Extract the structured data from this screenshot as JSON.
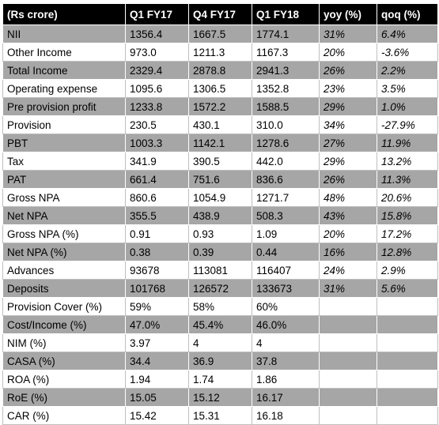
{
  "header": [
    "(Rs crore)",
    "Q1 FY17",
    "Q4 FY17",
    "Q1 FY18",
    "yoy (%)",
    "qoq (%)"
  ],
  "rows": [
    [
      "NII",
      "1356.4",
      "1667.5",
      "1774.1",
      "31%",
      "6.4%"
    ],
    [
      "Other Income",
      "973.0",
      "1211.3",
      "1167.3",
      "20%",
      "-3.6%"
    ],
    [
      "Total Income",
      "2329.4",
      "2878.8",
      "2941.3",
      "26%",
      "2.2%"
    ],
    [
      "Operating expense",
      "1095.6",
      "1306.5",
      "1352.8",
      "23%",
      "3.5%"
    ],
    [
      "Pre provision profit",
      "1233.8",
      "1572.2",
      "1588.5",
      "29%",
      "1.0%"
    ],
    [
      "Provision",
      "230.5",
      "430.1",
      "310.0",
      "34%",
      "-27.9%"
    ],
    [
      "PBT",
      "1003.3",
      "1142.1",
      "1278.6",
      "27%",
      "11.9%"
    ],
    [
      "Tax",
      "341.9",
      "390.5",
      "442.0",
      "29%",
      "13.2%"
    ],
    [
      "PAT",
      "661.4",
      "751.6",
      "836.6",
      "26%",
      "11.3%"
    ],
    [
      "Gross NPA",
      "860.6",
      "1054.9",
      "1271.7",
      "48%",
      "20.6%"
    ],
    [
      "Net NPA",
      "355.5",
      "438.9",
      "508.3",
      "43%",
      "15.8%"
    ],
    [
      "Gross NPA (%)",
      "0.91",
      "0.93",
      "1.09",
      "20%",
      "17.2%"
    ],
    [
      "Net NPA (%)",
      "0.38",
      "0.39",
      "0.44",
      "16%",
      "12.8%"
    ],
    [
      "Advances",
      "93678",
      "113081",
      "116407",
      "24%",
      "2.9%"
    ],
    [
      "Deposits",
      "101768",
      "126572",
      "133673",
      "31%",
      "5.6%"
    ],
    [
      "Provision Cover (%)",
      "59%",
      "58%",
      "60%",
      "",
      ""
    ],
    [
      "Cost/Income (%)",
      "47.0%",
      "45.4%",
      "46.0%",
      "",
      ""
    ],
    [
      "NIM (%)",
      "3.97",
      "4",
      "4",
      "",
      ""
    ],
    [
      "CASA (%)",
      "34.4",
      "36.9",
      "37.8",
      "",
      ""
    ],
    [
      "ROA (%)",
      "1.94",
      "1.74",
      "1.86",
      "",
      ""
    ],
    [
      "RoE (%)",
      "15.05",
      "15.12",
      "16.17",
      "",
      ""
    ],
    [
      "CAR (%)",
      "15.42",
      "15.31",
      "16.18",
      "",
      ""
    ]
  ],
  "colors": {
    "header_bg": "#000000",
    "header_text": "#ffffff",
    "band_dark": "#a6a6a6",
    "band_light": "#ffffff"
  }
}
